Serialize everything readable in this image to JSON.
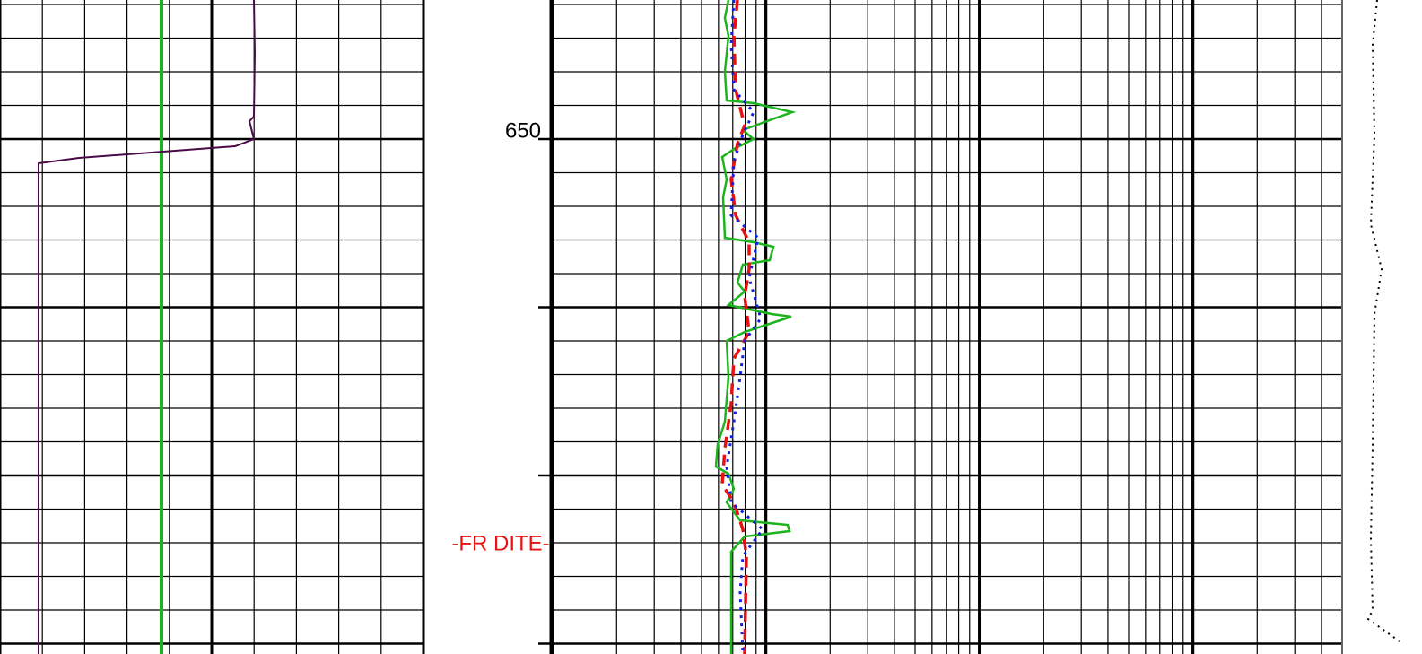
{
  "depth_label": "650",
  "annotation": "-FR DITE-"
}
